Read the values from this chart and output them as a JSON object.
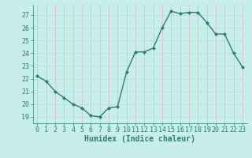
{
  "x": [
    0,
    1,
    2,
    3,
    4,
    5,
    6,
    7,
    8,
    9,
    10,
    11,
    12,
    13,
    14,
    15,
    16,
    17,
    18,
    19,
    20,
    21,
    22,
    23
  ],
  "y": [
    22.2,
    21.8,
    21.0,
    20.5,
    20.0,
    19.7,
    19.1,
    19.0,
    19.7,
    19.8,
    22.5,
    24.1,
    24.1,
    24.4,
    26.0,
    27.3,
    27.1,
    27.2,
    27.2,
    26.4,
    25.5,
    25.5,
    24.0,
    22.9
  ],
  "line_color": "#2e7d6e",
  "marker": "D",
  "markersize": 2.2,
  "linewidth": 1.0,
  "xlabel": "Humidex (Indice chaleur)",
  "xlim": [
    -0.5,
    23.5
  ],
  "ylim": [
    18.5,
    27.8
  ],
  "yticks": [
    19,
    20,
    21,
    22,
    23,
    24,
    25,
    26,
    27
  ],
  "xticks": [
    0,
    1,
    2,
    3,
    4,
    5,
    6,
    7,
    8,
    9,
    10,
    11,
    12,
    13,
    14,
    15,
    16,
    17,
    18,
    19,
    20,
    21,
    22,
    23
  ],
  "bg_color": "#c8eeec",
  "grid_color_x": "#ddb8b8",
  "grid_color_y": "#b8d8d8",
  "tick_color": "#2e7d6e",
  "xlabel_fontsize": 7,
  "tick_fontsize": 6
}
